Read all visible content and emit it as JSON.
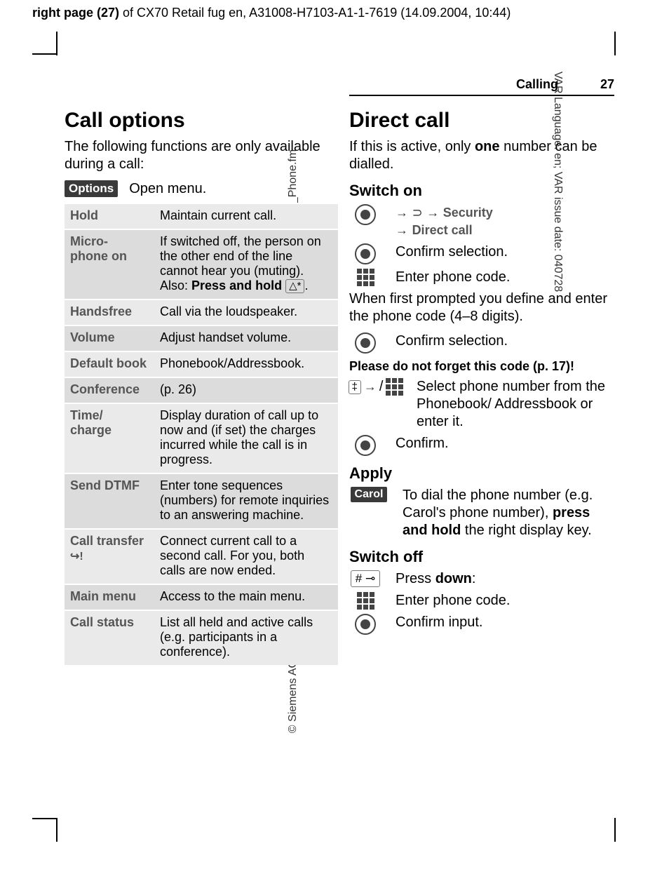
{
  "header": {
    "pagetag_prefix": "right page (27)",
    "pagetag_rest": " of CX70 Retail fug en, A31008-H7103-A1-1-7619 (14.09.2004, 10:44)",
    "left_rot": "© Siemens AG 2003, C:\\Siemens\\Produkte\\CX70\\output\\FUG\\CX70_FUG_en_040910_rs_pk_druck\\ULYR_Phone.fm",
    "right_rot": "VAR Language: en; VAR issue date: 040728",
    "section": "Calling",
    "pagenum": "27"
  },
  "left": {
    "title": "Call options",
    "intro": "The following functions are only available during a call:",
    "options_chip": "Options",
    "options_txt": "Open menu.",
    "rows": [
      {
        "k": "Hold",
        "v": "Maintain current call."
      },
      {
        "k": "Micro-\nphone on",
        "v_pre": "If switched off, the person on the other end of the line cannot hear you (muting).\nAlso: ",
        "v_bold": "Press and hold",
        "keycap": "△*",
        "v_post": "."
      },
      {
        "k": "Handsfree",
        "v": "Call via the loudspeaker."
      },
      {
        "k": "Volume",
        "v": "Adjust handset volume."
      },
      {
        "k": "Default book",
        "v": "Phonebook/Addressbook."
      },
      {
        "k": "Conference",
        "v": "(p. 26)"
      },
      {
        "k": "Time/\ncharge",
        "v": "Display duration of call up to now and (if set) the charges incurred while the call is in progress."
      },
      {
        "k": "Send DTMF",
        "v": "Enter tone sequences (numbers) for remote inquiries to an answering machine."
      },
      {
        "k": "Call transfer",
        "icon_suffix": "↪!",
        "v": "Connect current call to a second call. For you, both calls are now ended."
      },
      {
        "k": "Main menu",
        "v": "Access to the main menu."
      },
      {
        "k": "Call status",
        "v": "List all held and active calls (e.g. participants in a conference)."
      }
    ]
  },
  "right": {
    "title": "Direct call",
    "intro_pre": "If this is active, only ",
    "intro_bold": "one",
    "intro_post": " number can be dialled.",
    "switch_on": "Switch on",
    "nav_arrow": "→",
    "nav_menu_icon": "⊃",
    "nav_sec": "Security",
    "nav_dc": "Direct call",
    "confirm_sel": "Confirm selection.",
    "enter_code": "Enter phone code.",
    "define_text": "When first prompted you define and enter the phone code (4–8 digits).",
    "note": "Please do not forget this code (p. 17)!",
    "select_key": "‡",
    "select_txt": "Select phone number from the Phonebook/ Addressbook or enter it.",
    "confirm": "Confirm.",
    "apply": "Apply",
    "carol": "Carol",
    "carol_txt_pre": "To dial the phone number (e.g. Carol's phone number), ",
    "carol_bold": "press and hold",
    "carol_txt_post": " the right display key.",
    "switch_off": "Switch off",
    "hash": "# ⊸",
    "press_down_pre": "Press ",
    "press_down_bold": "down",
    "press_down_post": ":",
    "confirm_input": "Confirm input."
  },
  "colors": {
    "row_light": "#eaeaea",
    "row_dark": "#dcdcdc",
    "chip_bg": "#3a3a3a",
    "label_gray": "#555555"
  }
}
